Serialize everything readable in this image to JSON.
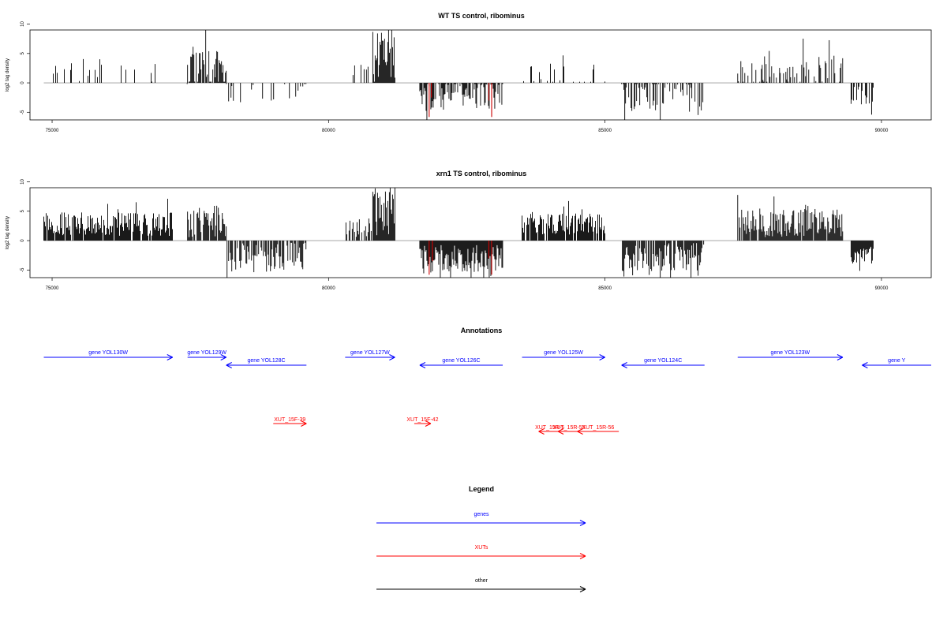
{
  "colors": {
    "gene": "#0000ff",
    "xut": "#ff0000",
    "other": "#000000",
    "bar": "#000000",
    "highlight": "#cc0000",
    "zero_line": "#999999"
  },
  "chart_data": [
    {
      "type": "bar",
      "title": "WT TS control, ribominus",
      "ylabel": "log2 tag density",
      "xlim": [
        74600,
        90900
      ],
      "ylim": [
        -6.3,
        9.0
      ],
      "yticks": [
        "10",
        "5",
        "0",
        "-5"
      ],
      "ytick_values": [
        10,
        5,
        0,
        -5
      ],
      "xticks": [
        "75000",
        "80000",
        "85000",
        "90000"
      ],
      "xtick_values": [
        75000,
        80000,
        85000,
        90000
      ],
      "segments": [
        {
          "start": 74850,
          "end": 77180,
          "strand": 1,
          "mean": 1.8,
          "amp": 1.6,
          "density": 0.13
        },
        {
          "start": 77400,
          "end": 77450,
          "strand": -1,
          "mean": 1.0,
          "amp": 1.5,
          "density": 0.5
        },
        {
          "start": 77450,
          "end": 78150,
          "strand": 1,
          "mean": 2.5,
          "amp": 3.0,
          "density": 0.8
        },
        {
          "start": 78150,
          "end": 79600,
          "strand": -1,
          "mean": 1.5,
          "amp": 2.0,
          "density": 0.2
        },
        {
          "start": 80300,
          "end": 80800,
          "strand": 1,
          "mean": 1.5,
          "amp": 1.5,
          "density": 0.25
        },
        {
          "start": 80800,
          "end": 81200,
          "strand": 1,
          "mean": 4.5,
          "amp": 5.0,
          "density": 1.0
        },
        {
          "start": 81650,
          "end": 83150,
          "strand": -1,
          "mean": 2.0,
          "amp": 2.5,
          "density": 0.7
        },
        {
          "start": 83500,
          "end": 85000,
          "strand": 1,
          "mean": 1.5,
          "amp": 1.8,
          "density": 0.2
        },
        {
          "start": 85300,
          "end": 86800,
          "strand": -1,
          "mean": 2.0,
          "amp": 3.0,
          "density": 0.45
        },
        {
          "start": 87400,
          "end": 89300,
          "strand": 1,
          "mean": 2.2,
          "amp": 2.5,
          "density": 0.45
        },
        {
          "start": 89450,
          "end": 89850,
          "strand": -1,
          "mean": 2.2,
          "amp": 1.8,
          "density": 0.5
        }
      ],
      "highlights": [
        {
          "x": 81820,
          "value": -5.8
        },
        {
          "x": 81860,
          "value": -2.5
        },
        {
          "x": 82950,
          "value": -5.8
        },
        {
          "x": 82900,
          "value": -3.0
        }
      ]
    },
    {
      "type": "bar",
      "title": "xrn1 TS control, ribominus",
      "ylabel": "log2 tag density",
      "xlim": [
        74600,
        90900
      ],
      "ylim": [
        -6.3,
        9.0
      ],
      "yticks": [
        "10",
        "5",
        "0",
        "-5"
      ],
      "ytick_values": [
        10,
        5,
        0,
        -5
      ],
      "xticks": [
        "75000",
        "80000",
        "85000",
        "90000"
      ],
      "xtick_values": [
        75000,
        80000,
        85000,
        90000
      ],
      "segments": [
        {
          "start": 74850,
          "end": 77180,
          "strand": 1,
          "mean": 2.8,
          "amp": 2.0,
          "density": 0.9
        },
        {
          "start": 77450,
          "end": 78150,
          "strand": 1,
          "mean": 3.2,
          "amp": 2.8,
          "density": 0.9
        },
        {
          "start": 78150,
          "end": 79600,
          "strand": -1,
          "mean": 2.8,
          "amp": 2.5,
          "density": 0.7
        },
        {
          "start": 80300,
          "end": 80800,
          "strand": 1,
          "mean": 2.0,
          "amp": 1.8,
          "density": 0.5
        },
        {
          "start": 80800,
          "end": 81200,
          "strand": 1,
          "mean": 5.0,
          "amp": 4.5,
          "density": 1.0
        },
        {
          "start": 81650,
          "end": 83150,
          "strand": -1,
          "mean": 3.2,
          "amp": 2.5,
          "density": 1.0
        },
        {
          "start": 83500,
          "end": 85000,
          "strand": 1,
          "mean": 2.8,
          "amp": 1.8,
          "density": 0.85
        },
        {
          "start": 85300,
          "end": 86800,
          "strand": -1,
          "mean": 2.8,
          "amp": 2.4,
          "density": 0.85
        },
        {
          "start": 87400,
          "end": 89300,
          "strand": 1,
          "mean": 3.0,
          "amp": 2.4,
          "density": 0.9
        },
        {
          "start": 89450,
          "end": 89850,
          "strand": -1,
          "mean": 2.5,
          "amp": 1.5,
          "density": 1.0
        }
      ],
      "highlights": [
        {
          "x": 81820,
          "value": -5.8
        },
        {
          "x": 81880,
          "value": -3.5
        },
        {
          "x": 82950,
          "value": -5.8
        },
        {
          "x": 82900,
          "value": -3.0
        }
      ]
    }
  ],
  "annotations": {
    "title": "Annotations",
    "genes": [
      {
        "label": "gene YOL130W",
        "start": 74850,
        "end": 77180,
        "strand": "+"
      },
      {
        "label": "gene YOL129W",
        "start": 77450,
        "end": 78150,
        "strand": "+"
      },
      {
        "label": "gene YOL128C",
        "start": 78150,
        "end": 79600,
        "strand": "-"
      },
      {
        "label": "gene YOL127W",
        "start": 80300,
        "end": 81200,
        "strand": "+"
      },
      {
        "label": "gene YOL126C",
        "start": 81650,
        "end": 83150,
        "strand": "-"
      },
      {
        "label": "gene YOL125W",
        "start": 83500,
        "end": 85000,
        "strand": "+"
      },
      {
        "label": "gene YOL124C",
        "start": 85300,
        "end": 86800,
        "strand": "-"
      },
      {
        "label": "gene YOL123W",
        "start": 87400,
        "end": 89300,
        "strand": "+"
      },
      {
        "label": "gene Y",
        "start": 89650,
        "end": 90900,
        "strand": "-"
      }
    ],
    "xuts": [
      {
        "label": "XUT_15F-39",
        "start": 79000,
        "end": 79600,
        "strand": "+"
      },
      {
        "label": "XUT_15F-42",
        "start": 81550,
        "end": 81850,
        "strand": "+"
      },
      {
        "label": "XUT_15R-5",
        "start": 83800,
        "end": 84200,
        "strand": "-"
      },
      {
        "label": "XUT_15R-55",
        "start": 84150,
        "end": 84550,
        "strand": "-"
      },
      {
        "label": "XUT_15R-56",
        "start": 84500,
        "end": 85250,
        "strand": "-"
      }
    ]
  },
  "legend": {
    "title": "Legend",
    "items": [
      {
        "label": "genes",
        "color": "#0000ff"
      },
      {
        "label": "XUTs",
        "color": "#ff0000"
      },
      {
        "label": "other",
        "color": "#000000"
      }
    ]
  }
}
